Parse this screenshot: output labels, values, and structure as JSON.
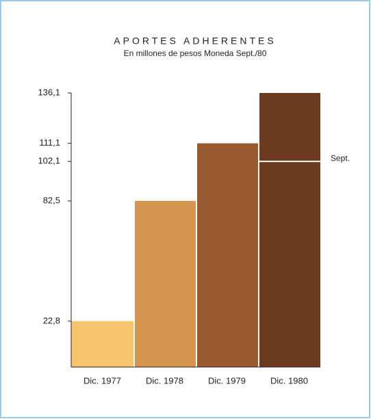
{
  "chart_data": {
    "type": "bar",
    "title": "APORTES ADHERENTES",
    "subtitle": "En millones de pesos Moneda Sept./80",
    "categories": [
      "Dic. 1977",
      "Dic. 1978",
      "Dic. 1979",
      "Dic. 1980"
    ],
    "values": [
      22.8,
      82.5,
      111.1,
      136.1
    ],
    "colors": [
      "#f6c46c",
      "#d39550",
      "#9a5a30",
      "#6b3a1f"
    ],
    "ylim": [
      0,
      136.1
    ],
    "yticks": [
      {
        "value": 22.8,
        "label": "22,8"
      },
      {
        "value": 82.5,
        "label": "82,5"
      },
      {
        "value": 102.1,
        "label": "102,1"
      },
      {
        "value": 111.1,
        "label": "111,1"
      },
      {
        "value": 136.1,
        "label": "136,1"
      }
    ],
    "annotations": [
      {
        "text": "Sept.",
        "value": 102.1
      }
    ]
  }
}
